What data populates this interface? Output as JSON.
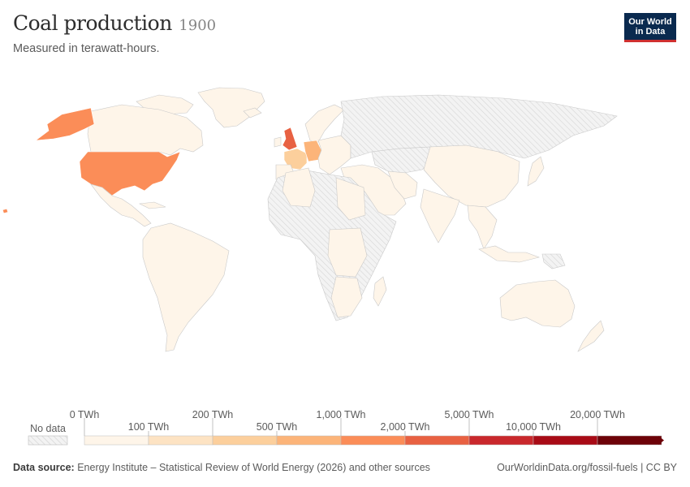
{
  "header": {
    "title": "Coal production",
    "year": "1900",
    "subtitle": "Measured in terawatt-hours.",
    "logo_line1": "Our World",
    "logo_line2": "in Data"
  },
  "legend": {
    "no_data_label": "No data",
    "upper_labels": [
      "0 TWh",
      "200 TWh",
      "1,000 TWh",
      "5,000 TWh",
      "20,000 TWh"
    ],
    "lower_labels": [
      "100 TWh",
      "500 TWh",
      "2,000 TWh",
      "10,000 TWh"
    ],
    "bins": [
      "#fef5e9",
      "#fde3c3",
      "#fccf9c",
      "#fcb479",
      "#fb8d58",
      "#e86142",
      "#c9282c",
      "#a80b16",
      "#6d0208"
    ],
    "no_data_color": "#e6e6e6"
  },
  "chart_data": {
    "type": "choropleth",
    "title": "Coal production",
    "year": 1900,
    "subtitle": "Measured in terawatt-hours.",
    "unit": "TWh",
    "scale_bins": [
      0,
      100,
      200,
      500,
      1000,
      2000,
      5000,
      10000,
      20000
    ],
    "categories": [
      "United States",
      "United Kingdom",
      "Germany",
      "France",
      "Russia",
      "Other countries with data"
    ],
    "colors": [
      "#fb8d58",
      "#e86142",
      "#fcb479",
      "#fccf9c",
      "#e6e6e6",
      "#fef5e9"
    ],
    "bin_ranges": [
      "1,000–2,000 TWh",
      "2,000–5,000 TWh",
      "500–1,000 TWh",
      "200–500 TWh",
      "No data",
      "0–100 TWh"
    ]
  },
  "footer": {
    "source_label": "Data source:",
    "source_text": "Energy Institute – Statistical Review of World Energy (2026) and other sources",
    "url_text": "OurWorldinData.org/fossil-fuels | CC BY"
  }
}
